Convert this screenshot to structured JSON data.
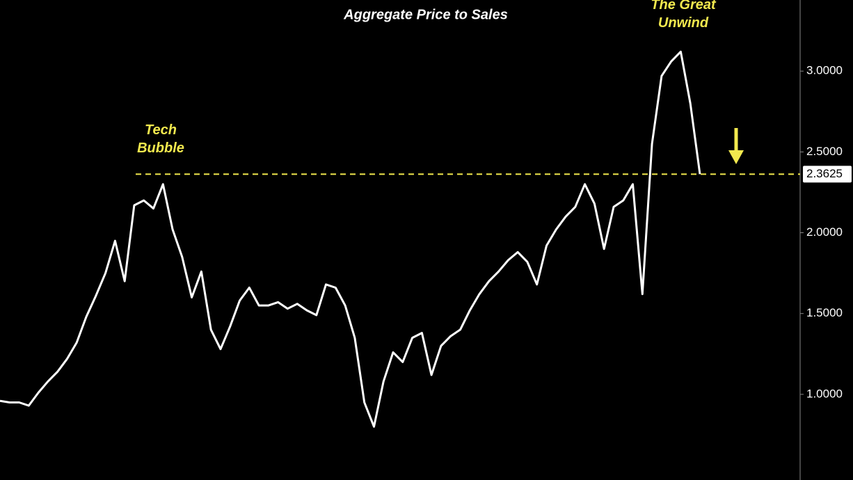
{
  "chart_data": {
    "type": "line",
    "title": "Aggregate Price to Sales",
    "annotations": [
      "Tech Bubble",
      "The Great Unwind"
    ],
    "series": [
      {
        "name": "Aggregate Price to Sales",
        "color": "#ffffff",
        "values": [
          0.96,
          0.95,
          0.95,
          0.93,
          1.01,
          1.08,
          1.14,
          1.22,
          1.32,
          1.48,
          1.61,
          1.75,
          1.95,
          1.7,
          2.17,
          2.2,
          2.15,
          2.3,
          2.02,
          1.85,
          1.6,
          1.76,
          1.4,
          1.28,
          1.42,
          1.58,
          1.66,
          1.55,
          1.55,
          1.57,
          1.53,
          1.56,
          1.52,
          1.49,
          1.68,
          1.66,
          1.55,
          1.35,
          0.95,
          0.8,
          1.08,
          1.26,
          1.2,
          1.35,
          1.38,
          1.12,
          1.3,
          1.36,
          1.4,
          1.52,
          1.62,
          1.7,
          1.76,
          1.83,
          1.88,
          1.82,
          1.68,
          1.92,
          2.02,
          2.1,
          2.16,
          2.3,
          2.18,
          1.9,
          2.16,
          2.2,
          2.3,
          1.62,
          2.55,
          2.97,
          3.06,
          3.12,
          2.8,
          2.3625
        ]
      }
    ],
    "reference_line": {
      "value": 2.3625,
      "color": "#f2e94e"
    },
    "ylim": [
      0.47,
      3.44
    ],
    "yticks": [
      {
        "value": 1,
        "label": "1.0000"
      },
      {
        "value": 1.5,
        "label": "1.5000"
      },
      {
        "value": 2,
        "label": "2.0000"
      },
      {
        "value": 2.5,
        "label": "2.5000"
      },
      {
        "value": 3,
        "label": "3.0000"
      }
    ]
  }
}
